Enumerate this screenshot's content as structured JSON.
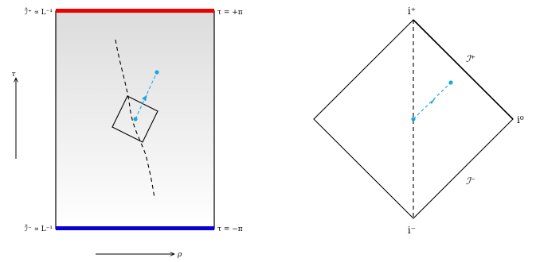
{
  "colors": {
    "scri_plus_bar": "#ee0000",
    "scri_minus_bar": "#0a00d6",
    "worldline": "#1aa7e0",
    "gradient_top": "#dcdcdc",
    "gradient_bottom": "#ffffff"
  },
  "left_panel": {
    "scri_plus_label": "ℐ̂⁺ ∝ L⁻¹",
    "scri_minus_label": "ℐ̂⁻ ∝ L⁻¹",
    "tau_top_label": "τ = +π",
    "tau_bottom_label": "τ = −π",
    "time_axis_label": "τ",
    "space_axis_label": "ρ"
  },
  "right_panel": {
    "i_plus": "i⁺",
    "i_minus": "i⁻",
    "i_zero": "i⁰",
    "scri_plus": "ℐ⁺",
    "scri_minus": "ℐ⁻"
  }
}
